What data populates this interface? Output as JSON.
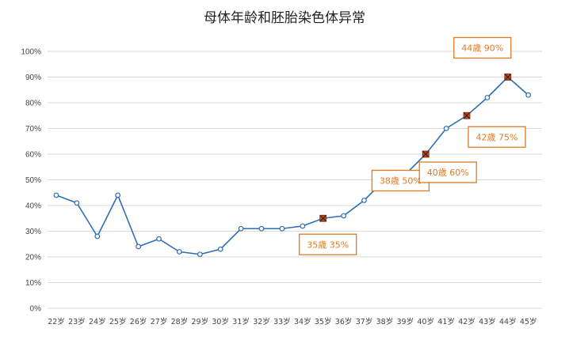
{
  "chart_data": {
    "type": "line",
    "title": "母体年龄和胚胎染色体异常",
    "xlabel": "",
    "ylabel": "",
    "categories": [
      "22岁",
      "23岁",
      "24岁",
      "25岁",
      "26岁",
      "27岁",
      "28岁",
      "29岁",
      "30岁",
      "31岁",
      "32岁",
      "33岁",
      "34岁",
      "35岁",
      "36岁",
      "37岁",
      "38岁",
      "39岁",
      "40岁",
      "41岁",
      "42岁",
      "43岁",
      "44岁",
      "45岁"
    ],
    "series": [
      {
        "values": [
          44,
          41,
          28,
          44,
          24,
          27,
          22,
          21,
          23,
          31,
          31,
          31,
          32,
          35,
          36,
          42,
          50,
          52,
          60,
          70,
          75,
          82,
          90,
          83
        ]
      }
    ],
    "ylim": [
      0,
      100
    ],
    "yticks": [
      "0%",
      "10%",
      "20%",
      "30%",
      "40%",
      "50%",
      "60%",
      "70%",
      "80%",
      "90%",
      "100%"
    ],
    "grid": true,
    "colors": {
      "line": "#2e6db4",
      "marker_fill": "#ffffff",
      "highlight": "#b5492a",
      "annotation": "#e07a1f",
      "grid": "#d9d9d9"
    },
    "annotations": [
      {
        "index": 13,
        "label": "35歳 35%"
      },
      {
        "index": 16,
        "label": "38歳 50%"
      },
      {
        "index": 18,
        "label": "40歳 60%"
      },
      {
        "index": 20,
        "label": "42歳 75%"
      },
      {
        "index": 22,
        "label": "44歳 90%"
      }
    ]
  }
}
